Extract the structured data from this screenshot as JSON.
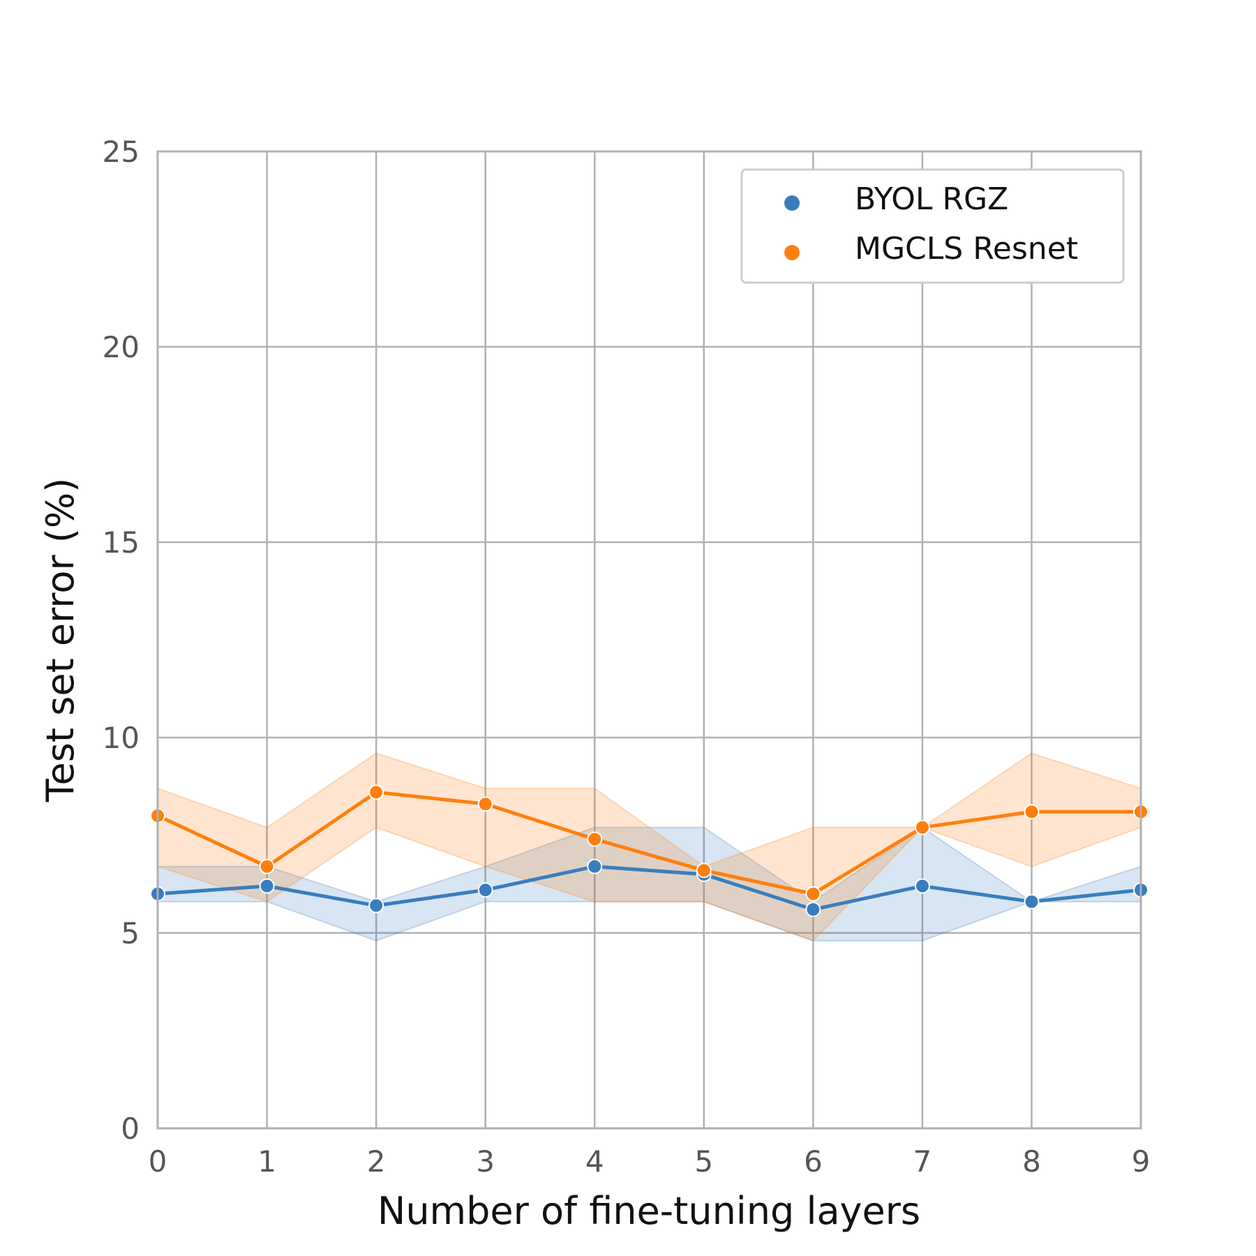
{
  "chart_data": {
    "type": "line",
    "title": "",
    "xlabel": "Number of fine-tuning layers",
    "ylabel": "Test set error (%)",
    "xlim": [
      0,
      9
    ],
    "ylim": [
      0,
      25
    ],
    "xticks": [
      0,
      1,
      2,
      3,
      4,
      5,
      6,
      7,
      8,
      9
    ],
    "yticks": [
      0,
      5,
      10,
      15,
      20,
      25
    ],
    "grid": true,
    "legend_position": "top-right",
    "x": [
      0,
      1,
      2,
      3,
      4,
      5,
      6,
      7,
      8,
      9
    ],
    "series": [
      {
        "name": "BYOL RGZ",
        "color": "#3a7dbd",
        "values": [
          6.0,
          6.2,
          5.7,
          6.1,
          6.7,
          6.5,
          5.6,
          6.2,
          5.8,
          6.1
        ],
        "lower": [
          5.8,
          5.8,
          4.8,
          5.8,
          5.8,
          5.8,
          4.8,
          4.8,
          5.8,
          5.8
        ],
        "upper": [
          6.7,
          6.7,
          5.8,
          6.7,
          7.7,
          7.7,
          5.8,
          7.7,
          5.8,
          6.7
        ]
      },
      {
        "name": "MGCLS Resnet",
        "color": "#ff7f0e",
        "values": [
          8.0,
          6.7,
          8.6,
          8.3,
          7.4,
          6.6,
          6.0,
          7.7,
          8.1,
          8.1
        ],
        "lower": [
          6.7,
          5.8,
          7.7,
          6.7,
          5.8,
          5.8,
          4.8,
          7.7,
          6.7,
          7.7
        ],
        "upper": [
          8.7,
          7.7,
          9.6,
          8.7,
          8.7,
          6.7,
          7.7,
          7.7,
          9.6,
          8.7
        ]
      }
    ]
  }
}
